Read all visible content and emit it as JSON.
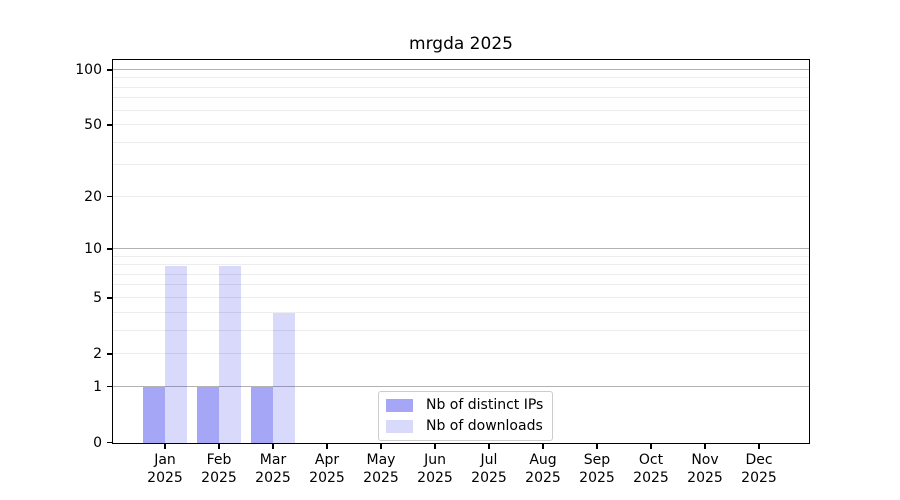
{
  "chart_data": {
    "type": "bar",
    "title": "mrgda 2025",
    "categories": [
      "Jan 2025",
      "Feb 2025",
      "Mar 2025",
      "Apr 2025",
      "May 2025",
      "Jun 2025",
      "Jul 2025",
      "Aug 2025",
      "Sep 2025",
      "Oct 2025",
      "Nov 2025",
      "Dec 2025"
    ],
    "series": [
      {
        "name": "Nb of distinct IPs",
        "swatch": "#a6a6f6",
        "bar_rgba": "rgba(0,0,230,0.35)",
        "values": [
          1,
          1,
          1,
          0,
          0,
          0,
          0,
          0,
          0,
          0,
          0,
          0
        ]
      },
      {
        "name": "Nb of downloads",
        "swatch": "#d9d9fb",
        "bar_rgba": "rgba(0,0,230,0.15)",
        "values": [
          8,
          8,
          4,
          0,
          0,
          0,
          0,
          0,
          0,
          0,
          0,
          0
        ]
      }
    ],
    "yscale": "log10(1+y)",
    "ylim": [
      0,
      112
    ],
    "y_tick_labels": [
      "0",
      "1",
      "2",
      "5",
      "10",
      "20",
      "50",
      "100"
    ],
    "y_tick_values": [
      0,
      1,
      2,
      5,
      10,
      20,
      50,
      100
    ],
    "y_major_grid_values": [
      1,
      10,
      100
    ],
    "y_minor_grid_values": [
      2,
      3,
      4,
      5,
      6,
      7,
      8,
      9,
      20,
      30,
      40,
      50,
      60,
      70,
      80,
      90
    ],
    "xlabel": "",
    "ylabel": "",
    "grid": "horizontal",
    "legend_position": "lower center"
  },
  "colors": {
    "bar_dark": "#a6a6f6",
    "bar_light": "#d9d9fb",
    "grid_major": "#b2b2b2",
    "grid_minor": "#ececec",
    "spine": "#000000",
    "legend_border": "#cccccc",
    "background": "#ffffff",
    "text": "#000000"
  }
}
